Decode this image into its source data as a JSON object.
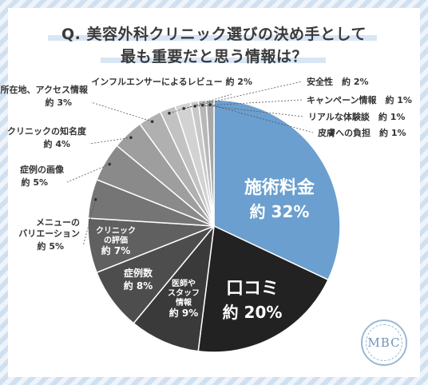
{
  "title": {
    "line1": "Q. 美容外科クリニック選びの決め手として",
    "line2": "最も重要だと思う情報は？"
  },
  "logo_text": "MBC",
  "colors": {
    "accent": "#6b9fcf",
    "dark": "#1f1f1f",
    "background_stripe": "#cfe0f0"
  },
  "chart_data": {
    "type": "pie",
    "start": "12 o'clock, clockwise",
    "slices": [
      {
        "label": "施術料金",
        "display": "約 32%",
        "value": 32,
        "color": "#6b9fcf",
        "label_inside": true,
        "big": true
      },
      {
        "label": "口コミ",
        "display": "約 20%",
        "value": 20,
        "color": "#222222",
        "label_inside": true,
        "big": true
      },
      {
        "label": "医師やスタッフ情報",
        "lines": [
          "医師や",
          "スタッフ",
          "情報"
        ],
        "display": "約 9%",
        "value": 9,
        "color": "#3a3a3a",
        "label_inside": true
      },
      {
        "label": "症例数",
        "lines": [
          "症例数"
        ],
        "display": "約 8%",
        "value": 8,
        "color": "#4d4d4d",
        "label_inside": true
      },
      {
        "label": "クリニックの評価",
        "lines": [
          "クリニック",
          "の評価"
        ],
        "display": "約 7%",
        "value": 7,
        "color": "#606060",
        "label_inside": true
      },
      {
        "label": "メニューのバリエーション",
        "lines": [
          "メニューの",
          "バリエーション"
        ],
        "display": "約 5%",
        "value": 5,
        "color": "#757575",
        "label_inside": false
      },
      {
        "label": "症例の画像",
        "lines": [
          "症例の画像"
        ],
        "display": "約 5%",
        "value": 5,
        "color": "#8a8a8a",
        "label_inside": false
      },
      {
        "label": "クリニックの知名度",
        "lines": [
          "クリニックの知名度"
        ],
        "display": "約 4%",
        "value": 4,
        "color": "#9e9e9e",
        "label_inside": false
      },
      {
        "label": "所在地、アクセス情報",
        "lines": [
          "所在地、アクセス情報"
        ],
        "display": "約 3%",
        "value": 3,
        "color": "#b0b0b0",
        "label_inside": false
      },
      {
        "label": "インフルエンサーによるレビュー",
        "lines": [
          "インフルエンサーによるレビュー"
        ],
        "display": "約 2%",
        "value": 2,
        "color": "#c2c2c2",
        "label_inside": false
      },
      {
        "label": "安全性",
        "lines": [
          "安全性"
        ],
        "display": "約 2%",
        "value": 2,
        "color": "#d2d2d2",
        "label_inside": false
      },
      {
        "label": "キャンペーン情報",
        "lines": [
          "キャンペーン情報"
        ],
        "display": "約 1%",
        "value": 1,
        "color": "#c8c8c8",
        "label_inside": false
      },
      {
        "label": "リアルな体験談",
        "lines": [
          "リアルな体験談"
        ],
        "display": "約 1%",
        "value": 1,
        "color": "#b8b8b8",
        "label_inside": false
      },
      {
        "label": "皮膚への負担",
        "lines": [
          "皮膚への負担"
        ],
        "display": "約 1%",
        "value": 1,
        "color": "#a8a8a8",
        "label_inside": false
      }
    ]
  }
}
